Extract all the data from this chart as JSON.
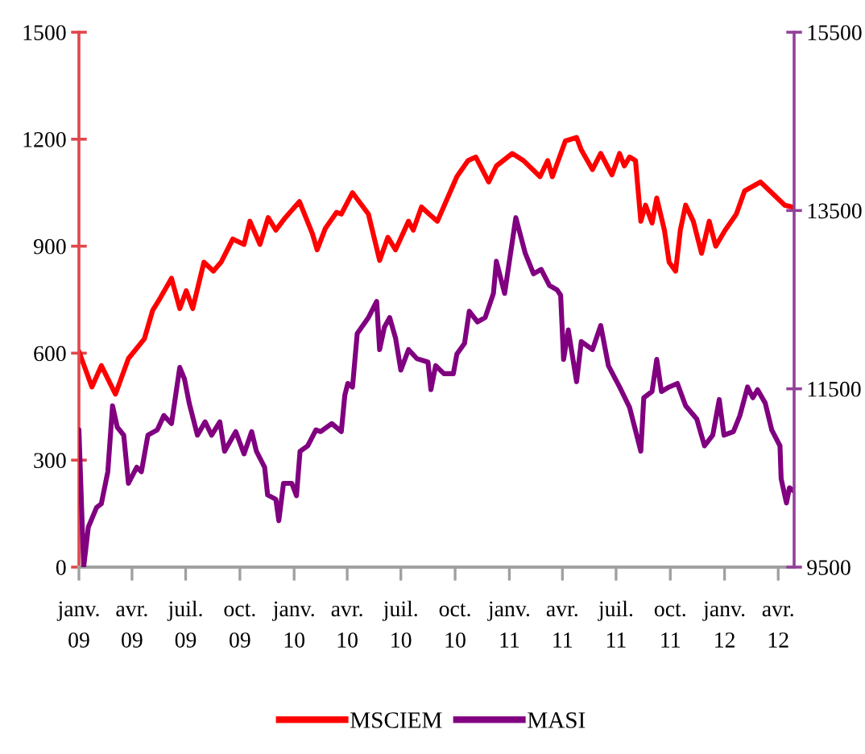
{
  "chart_data": {
    "type": "line",
    "xlim": [
      "2009-01-01",
      "2012-04-28"
    ],
    "xticks": [
      {
        "value": "2009-01-01",
        "label": "janv. 09"
      },
      {
        "value": "2009-04-01",
        "label": "avr. 09"
      },
      {
        "value": "2009-07-01",
        "label": "juil. 09"
      },
      {
        "value": "2009-10-01",
        "label": "oct. 09"
      },
      {
        "value": "2010-01-01",
        "label": "janv. 10"
      },
      {
        "value": "2010-04-01",
        "label": "avr. 10"
      },
      {
        "value": "2010-07-01",
        "label": "juil. 10"
      },
      {
        "value": "2010-10-01",
        "label": "oct. 10"
      },
      {
        "value": "2011-01-01",
        "label": "janv. 11"
      },
      {
        "value": "2011-04-01",
        "label": "avr. 11"
      },
      {
        "value": "2011-07-01",
        "label": "juil. 11"
      },
      {
        "value": "2011-10-01",
        "label": "oct. 11"
      },
      {
        "value": "2012-01-01",
        "label": "janv. 12"
      },
      {
        "value": "2012-04-01",
        "label": "avr. 12"
      }
    ],
    "ylim": [
      0,
      1500
    ],
    "yticks": [
      0,
      300,
      600,
      900,
      1200,
      1500
    ],
    "y2lim": [
      9500,
      15500
    ],
    "y2ticks": [
      9500,
      11500,
      13500,
      15500
    ],
    "legend": "bottom",
    "series": [
      {
        "name": "MSCIEM",
        "color": "#ff0000",
        "x": [
          "2009-01-01",
          "2009-01-23",
          "2009-02-08",
          "2009-03-04",
          "2009-03-26",
          "2009-04-22",
          "2009-05-06",
          "2009-05-19",
          "2009-06-07",
          "2009-06-21",
          "2009-07-02",
          "2009-07-13",
          "2009-08-01",
          "2009-08-17",
          "2009-08-30",
          "2009-09-19",
          "2009-10-08",
          "2009-10-18",
          "2009-11-04",
          "2009-11-18",
          "2009-12-01",
          "2009-12-17",
          "2010-01-10",
          "2010-02-01",
          "2010-02-09",
          "2010-02-23",
          "2010-03-14",
          "2010-03-22",
          "2010-04-10",
          "2010-05-07",
          "2010-05-26",
          "2010-06-09",
          "2010-06-22",
          "2010-07-14",
          "2010-07-22",
          "2010-08-05",
          "2010-08-18",
          "2010-09-01",
          "2010-10-04",
          "2010-10-23",
          "2010-11-05",
          "2010-11-27",
          "2010-12-10",
          "2011-01-06",
          "2011-01-25",
          "2011-02-22",
          "2011-03-07",
          "2011-03-15",
          "2011-04-06",
          "2011-04-25",
          "2011-05-03",
          "2011-05-22",
          "2011-06-05",
          "2011-06-24",
          "2011-07-07",
          "2011-07-15",
          "2011-07-24",
          "2011-08-03",
          "2011-08-12",
          "2011-08-20",
          "2011-08-31",
          "2011-09-08",
          "2011-09-21",
          "2011-09-29",
          "2011-10-10",
          "2011-10-18",
          "2011-10-27",
          "2011-11-09",
          "2011-11-23",
          "2011-12-06",
          "2011-12-17",
          "2012-01-02",
          "2012-01-21",
          "2012-02-04",
          "2012-03-02",
          "2012-03-21",
          "2012-04-12",
          "2012-04-25"
        ],
        "values": [
          605,
          505,
          565,
          485,
          585,
          640,
          720,
          755,
          810,
          725,
          775,
          725,
          855,
          830,
          855,
          920,
          905,
          970,
          905,
          980,
          945,
          980,
          1025,
          935,
          890,
          950,
          995,
          990,
          1050,
          990,
          860,
          925,
          890,
          970,
          945,
          1010,
          990,
          970,
          1095,
          1140,
          1150,
          1080,
          1125,
          1160,
          1140,
          1095,
          1140,
          1095,
          1195,
          1205,
          1170,
          1115,
          1160,
          1100,
          1160,
          1125,
          1150,
          1140,
          970,
          1015,
          965,
          1035,
          945,
          855,
          830,
          945,
          1015,
          970,
          880,
          970,
          900,
          945,
          990,
          1055,
          1080,
          1050,
          1015,
          1010
        ]
      },
      {
        "name": "MASI",
        "color": "#800080",
        "axis": "y2",
        "x": [
          "2009-01-01",
          "2009-01-09",
          "2009-01-17",
          "2009-01-31",
          "2009-02-08",
          "2009-02-19",
          "2009-02-27",
          "2009-03-07",
          "2009-03-18",
          "2009-03-26",
          "2009-04-09",
          "2009-04-17",
          "2009-04-28",
          "2009-05-14",
          "2009-05-25",
          "2009-06-07",
          "2009-06-21",
          "2009-06-29",
          "2009-07-07",
          "2009-07-21",
          "2009-08-03",
          "2009-08-14",
          "2009-08-28",
          "2009-09-05",
          "2009-09-24",
          "2009-10-08",
          "2009-10-21",
          "2009-10-29",
          "2009-11-12",
          "2009-11-17",
          "2009-12-01",
          "2009-12-06",
          "2009-12-14",
          "2009-12-28",
          "2010-01-05",
          "2010-01-11",
          "2010-01-24",
          "2010-02-07",
          "2010-02-15",
          "2010-03-06",
          "2010-03-22",
          "2010-03-28",
          "2010-04-02",
          "2010-04-10",
          "2010-04-18",
          "2010-05-07",
          "2010-05-21",
          "2010-05-26",
          "2010-06-03",
          "2010-06-12",
          "2010-06-22",
          "2010-07-01",
          "2010-07-14",
          "2010-07-28",
          "2010-08-16",
          "2010-08-21",
          "2010-08-29",
          "2010-09-12",
          "2010-09-28",
          "2010-10-04",
          "2010-10-17",
          "2010-10-25",
          "2010-11-08",
          "2010-11-21",
          "2010-12-05",
          "2010-12-10",
          "2010-12-24",
          "2011-01-12",
          "2011-01-28",
          "2011-02-11",
          "2011-02-24",
          "2011-03-10",
          "2011-03-23",
          "2011-03-29",
          "2011-04-03",
          "2011-04-11",
          "2011-04-25",
          "2011-05-03",
          "2011-05-22",
          "2011-06-05",
          "2011-06-18",
          "2011-07-07",
          "2011-07-24",
          "2011-08-12",
          "2011-08-17",
          "2011-08-31",
          "2011-09-08",
          "2011-09-16",
          "2011-09-29",
          "2011-10-13",
          "2011-10-27",
          "2011-11-15",
          "2011-11-28",
          "2011-12-12",
          "2011-12-23",
          "2011-12-31",
          "2012-01-16",
          "2012-01-27",
          "2012-02-09",
          "2012-02-18",
          "2012-02-26",
          "2012-03-10",
          "2012-03-21",
          "2012-04-04",
          "2012-04-06",
          "2012-04-15",
          "2012-04-20",
          "2012-04-28"
        ],
        "values": [
          11040,
          9500,
          9950,
          10170,
          10210,
          10570,
          11310,
          11070,
          10980,
          10440,
          10620,
          10570,
          10980,
          11040,
          11200,
          11110,
          11740,
          11610,
          11340,
          10980,
          11130,
          10980,
          11130,
          10800,
          11020,
          10770,
          11020,
          10800,
          10620,
          10310,
          10260,
          10020,
          10440,
          10440,
          10300,
          10800,
          10860,
          11040,
          11020,
          11110,
          11020,
          11430,
          11560,
          11520,
          12120,
          12300,
          12480,
          11940,
          12190,
          12300,
          12070,
          11710,
          11940,
          11840,
          11800,
          11490,
          11760,
          11670,
          11670,
          11890,
          12010,
          12370,
          12250,
          12300,
          12570,
          12930,
          12570,
          13420,
          13020,
          12790,
          12840,
          12660,
          12610,
          12550,
          11830,
          12160,
          11580,
          12030,
          11940,
          12210,
          11760,
          11520,
          11290,
          10800,
          11400,
          11470,
          11830,
          11470,
          11520,
          11560,
          11310,
          11160,
          10860,
          10980,
          11380,
          10980,
          11020,
          11200,
          11520,
          11400,
          11490,
          11340,
          11040,
          10860,
          10490,
          10220,
          10390,
          10350
        ]
      }
    ]
  }
}
